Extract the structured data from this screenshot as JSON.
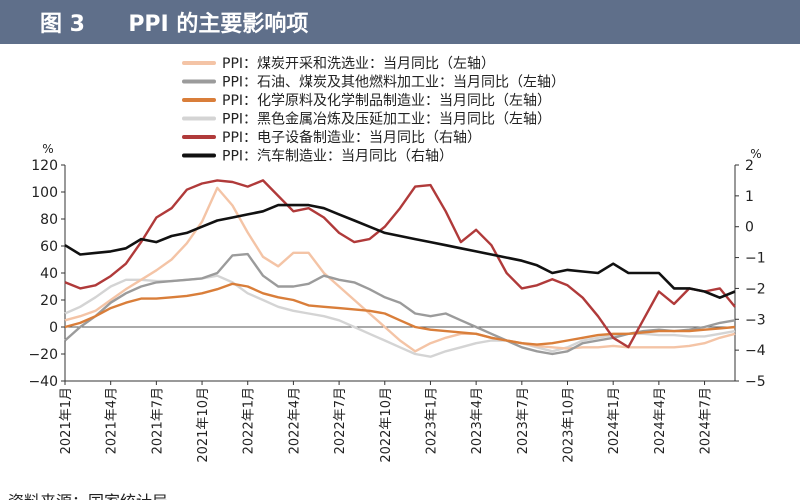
{
  "figure": {
    "label": "图 3",
    "title": "PPI 的主要影响项"
  },
  "source_note": "资料来源：国家统计局",
  "chart_data": {
    "type": "line",
    "title": "PPI 的主要影响项",
    "left_axis": {
      "unit": "%",
      "ylim": [
        -40,
        120
      ],
      "ticks": [
        "120",
        "100",
        "80",
        "60",
        "40",
        "20",
        "0",
        "−20",
        "−40"
      ]
    },
    "right_axis": {
      "unit": "%",
      "ylim": [
        -5,
        2
      ],
      "ticks": [
        "2",
        "1",
        "0",
        "−1",
        "−2",
        "−3",
        "−4",
        "−5"
      ]
    },
    "x_tick_labels": [
      "2021年1月",
      "2021年4月",
      "2021年7月",
      "2021年10月",
      "2022年1月",
      "2022年4月",
      "2022年7月",
      "2022年10月",
      "2023年1月",
      "2023年4月",
      "2023年7月",
      "2023年10月",
      "2024年1月",
      "2024年4月",
      "2024年7月"
    ],
    "series": [
      {
        "name": "PPI：煤炭开采和洗选业：当月同比（左轴）",
        "axis": "left",
        "color": "#f4c4a6",
        "values": [
          5,
          8,
          12,
          20,
          28,
          35,
          42,
          50,
          62,
          78,
          103,
          90,
          70,
          52,
          45,
          55,
          55,
          40,
          30,
          20,
          10,
          0,
          -10,
          -18,
          -12,
          -8,
          -5,
          -5,
          -8,
          -10,
          -12,
          -14,
          -15,
          -16,
          -15,
          -15,
          -14,
          -15,
          -15,
          -15,
          -15,
          -14,
          -12,
          -8,
          -5
        ]
      },
      {
        "name": "PPI：石油、煤炭及其他燃料加工业：当月同比（左轴）",
        "axis": "left",
        "color": "#9b9b9b",
        "values": [
          -10,
          0,
          8,
          18,
          25,
          30,
          33,
          34,
          35,
          36,
          40,
          53,
          54,
          38,
          30,
          30,
          32,
          38,
          35,
          33,
          28,
          22,
          18,
          10,
          8,
          10,
          5,
          0,
          -5,
          -10,
          -15,
          -18,
          -20,
          -18,
          -12,
          -10,
          -8,
          -5,
          -3,
          -2,
          -3,
          -2,
          0,
          3,
          5
        ]
      },
      {
        "name": "PPI：化学原料及化学制品制造业：当月同比（左轴）",
        "axis": "left",
        "color": "#d97e3a",
        "values": [
          0,
          3,
          8,
          14,
          18,
          21,
          21,
          22,
          23,
          25,
          28,
          32,
          30,
          25,
          22,
          20,
          16,
          15,
          14,
          13,
          12,
          10,
          5,
          0,
          -2,
          -3,
          -4,
          -5,
          -8,
          -10,
          -12,
          -13,
          -12,
          -10,
          -8,
          -6,
          -5,
          -5,
          -4,
          -3,
          -3,
          -3,
          -2,
          -1,
          0
        ]
      },
      {
        "name": "PPI：黑色金属冶炼及压延加工业：当月同比（左轴）",
        "axis": "left",
        "color": "#d4d4d4",
        "values": [
          10,
          15,
          22,
          30,
          35,
          35,
          34,
          34,
          35,
          36,
          38,
          33,
          25,
          20,
          15,
          12,
          10,
          8,
          5,
          0,
          -5,
          -10,
          -15,
          -20,
          -22,
          -18,
          -15,
          -12,
          -10,
          -10,
          -12,
          -15,
          -18,
          -15,
          -10,
          -8,
          -6,
          -5,
          -5,
          -6,
          -6,
          -7,
          -7,
          -5,
          -3
        ]
      },
      {
        "name": "PPI：电子设备制造业：当月同比（右轴）",
        "axis": "right",
        "color": "#b03a3a",
        "values": [
          -1.8,
          -2.0,
          -1.9,
          -1.6,
          -1.2,
          -0.5,
          0.3,
          0.6,
          1.2,
          1.4,
          1.5,
          1.45,
          1.3,
          1.5,
          1.0,
          0.5,
          0.6,
          0.3,
          -0.2,
          -0.5,
          -0.4,
          0.0,
          0.6,
          1.3,
          1.35,
          0.5,
          -0.5,
          -0.1,
          -0.6,
          -1.5,
          -2.0,
          -1.9,
          -1.7,
          -1.9,
          -2.3,
          -2.9,
          -3.6,
          -3.9,
          -3.0,
          -2.1,
          -2.5,
          -2.0,
          -2.1,
          -2.0,
          -2.6
        ]
      },
      {
        "name": "PPI：汽车制造业：当月同比（右轴）",
        "axis": "right",
        "color": "#111111",
        "values": [
          -0.6,
          -0.9,
          -0.85,
          -0.8,
          -0.7,
          -0.4,
          -0.5,
          -0.3,
          -0.2,
          0.0,
          0.2,
          0.3,
          0.4,
          0.5,
          0.7,
          0.7,
          0.7,
          0.6,
          0.4,
          0.2,
          0.0,
          -0.2,
          -0.3,
          -0.4,
          -0.5,
          -0.6,
          -0.7,
          -0.8,
          -0.9,
          -1.0,
          -1.1,
          -1.25,
          -1.5,
          -1.4,
          -1.45,
          -1.5,
          -1.2,
          -1.5,
          -1.5,
          -1.5,
          -2.0,
          -2.0,
          -2.1,
          -2.3,
          -2.1
        ]
      }
    ]
  }
}
